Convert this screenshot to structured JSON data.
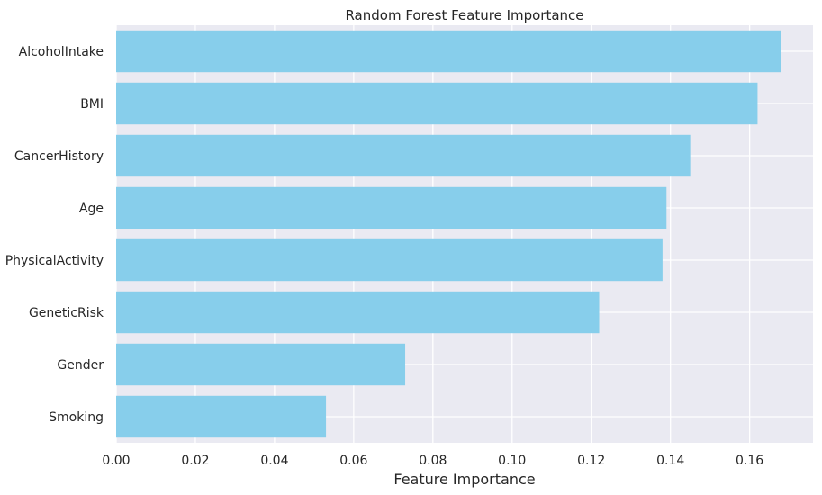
{
  "chart_data": {
    "type": "bar",
    "orientation": "horizontal",
    "title": "Random Forest Feature Importance",
    "xlabel": "Feature Importance",
    "ylabel": "",
    "categories": [
      "AlcoholIntake",
      "BMI",
      "CancerHistory",
      "Age",
      "PhysicalActivity",
      "GeneticRisk",
      "Gender",
      "Smoking"
    ],
    "values": [
      0.168,
      0.162,
      0.145,
      0.139,
      0.138,
      0.122,
      0.073,
      0.053
    ],
    "xlim": [
      0,
      0.176
    ],
    "xticks": [
      0.0,
      0.02,
      0.04,
      0.06,
      0.08,
      0.1,
      0.12,
      0.14,
      0.16
    ],
    "xtick_labels": [
      "0.00",
      "0.02",
      "0.04",
      "0.06",
      "0.08",
      "0.10",
      "0.12",
      "0.14",
      "0.16"
    ],
    "grid": true,
    "colors": {
      "bar": "#87ceeb",
      "background": "#eaeaf2",
      "grid": "#ffffff",
      "text": "#262626"
    }
  }
}
